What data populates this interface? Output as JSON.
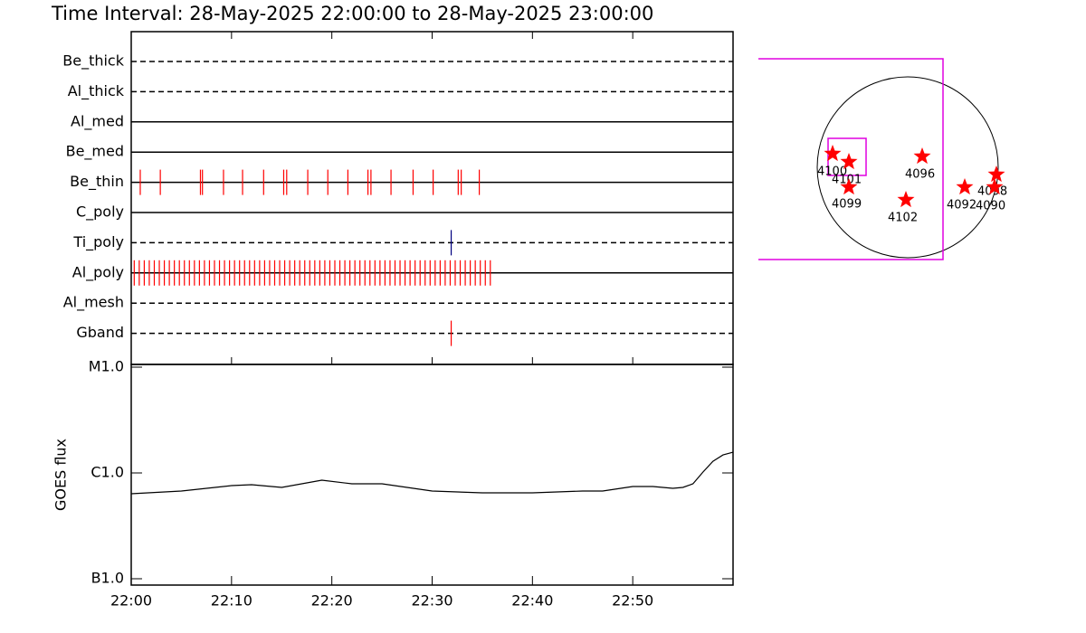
{
  "title": "Time Interval: 28-May-2025 22:00:00 to 28-May-2025 23:00:00",
  "chart_data": [
    {
      "type": "event",
      "xlim": [
        0,
        60
      ],
      "rows": [
        {
          "name": "Be_thick",
          "style": "dashed",
          "color": "#ff0000",
          "events": []
        },
        {
          "name": "Al_thick",
          "style": "dashed",
          "color": "#ff0000",
          "events": []
        },
        {
          "name": "Al_med",
          "style": "solid",
          "color": "#ff0000",
          "events": []
        },
        {
          "name": "Be_med",
          "style": "solid",
          "color": "#ff0000",
          "events": []
        },
        {
          "name": "Be_thin",
          "style": "solid",
          "color": "#ff0000",
          "events": [
            0.9,
            2.9,
            6.9,
            7.1,
            9.2,
            11.1,
            13.2,
            15.2,
            15.5,
            17.6,
            19.6,
            21.6,
            23.6,
            23.9,
            25.9,
            28.1,
            30.1,
            32.6,
            32.9,
            34.7
          ]
        },
        {
          "name": "C_poly",
          "style": "solid",
          "color": "#ff0000",
          "events": []
        },
        {
          "name": "Ti_poly",
          "style": "dashed",
          "color": "#000080",
          "events": [
            31.9
          ]
        },
        {
          "name": "Al_poly",
          "style": "solid",
          "color": "#ff0000",
          "events": [
            0.3,
            0.8,
            1.3,
            1.8,
            2.3,
            2.8,
            3.3,
            3.8,
            4.3,
            4.8,
            5.3,
            5.8,
            6.3,
            6.8,
            7.3,
            7.8,
            8.3,
            8.8,
            9.3,
            9.8,
            10.3,
            10.8,
            11.3,
            11.8,
            12.3,
            12.8,
            13.3,
            13.8,
            14.3,
            14.8,
            15.3,
            15.8,
            16.3,
            16.8,
            17.3,
            17.8,
            18.3,
            18.8,
            19.3,
            19.8,
            20.3,
            20.8,
            21.3,
            21.8,
            22.3,
            22.8,
            23.3,
            23.8,
            24.3,
            24.8,
            25.3,
            25.8,
            26.3,
            26.8,
            27.3,
            27.8,
            28.3,
            28.8,
            29.3,
            29.8,
            30.3,
            30.8,
            31.3,
            31.8,
            32.3,
            32.8,
            33.3,
            33.8,
            34.3,
            34.8,
            35.3,
            35.8
          ]
        },
        {
          "name": "Al_mesh",
          "style": "dashed",
          "color": "#ff0000",
          "events": []
        },
        {
          "name": "Gband",
          "style": "dashed",
          "color": "#ff0000",
          "events": [
            31.9
          ]
        }
      ]
    },
    {
      "type": "line",
      "ylabel": "GOES flux",
      "log": true,
      "color": "#000000",
      "xlim": [
        0,
        60
      ],
      "xticks": [
        {
          "value": 0,
          "label": "22:00"
        },
        {
          "value": 10,
          "label": "22:10"
        },
        {
          "value": 20,
          "label": "22:20"
        },
        {
          "value": 30,
          "label": "22:30"
        },
        {
          "value": 40,
          "label": "22:40"
        },
        {
          "value": 50,
          "label": "22:50"
        }
      ],
      "ylim": [
        1e-07,
        1e-05
      ],
      "yticks": [
        {
          "value": 1e-05,
          "label": "M1.0"
        },
        {
          "value": 1e-06,
          "label": "C1.0"
        },
        {
          "value": 1e-07,
          "label": "B1.0"
        }
      ],
      "x": [
        0,
        5,
        10,
        12,
        15,
        19,
        22,
        25,
        30,
        35,
        40,
        45,
        47,
        50,
        52,
        54,
        55,
        56,
        57,
        58,
        59,
        60
      ],
      "values": [
        6.36e-07,
        6.75e-07,
        7.59e-07,
        7.74e-07,
        7.3e-07,
        8.54e-07,
        7.89e-07,
        7.89e-07,
        6.75e-07,
        6.49e-07,
        6.49e-07,
        6.75e-07,
        6.75e-07,
        7.44e-07,
        7.44e-07,
        7.16e-07,
        7.3e-07,
        7.89e-07,
        1.02e-06,
        1.29e-06,
        1.48e-06,
        1.57e-06
      ]
    },
    {
      "type": "map",
      "regions": [
        "4100",
        "4101",
        "4099",
        "4102",
        "4096",
        "4092",
        "4098",
        "4090"
      ]
    }
  ]
}
